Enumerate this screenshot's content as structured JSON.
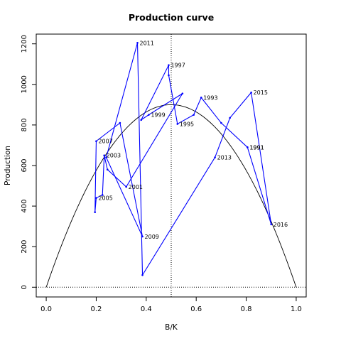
{
  "chart_data": {
    "type": "line",
    "title": "Production curve",
    "xlabel": "B/K",
    "ylabel": "Production",
    "xlim": [
      -0.04,
      1.04
    ],
    "ylim": [
      -48,
      1248
    ],
    "xticks": [
      0.0,
      0.2,
      0.4,
      0.6,
      0.8,
      1.0
    ],
    "xtick_labels": [
      "0.0",
      "0.2",
      "0.4",
      "0.6",
      "0.8",
      "1.0"
    ],
    "yticks": [
      0,
      200,
      400,
      600,
      800,
      1000,
      1200
    ],
    "ytick_labels": [
      "0",
      "200",
      "400",
      "600",
      "800",
      "1000",
      "1200"
    ],
    "grid": false,
    "legend": "none",
    "reference_lines": {
      "horizontal_dotted_y": 0,
      "vertical_dotted_x": 0.5
    },
    "curve": {
      "shape": "parabola",
      "peak_x": 0.5,
      "peak_y": 900,
      "x_from": 0.0,
      "x_to": 1.0,
      "color": "#000000"
    },
    "series": [
      {
        "color": "#0000ff",
        "points": [
          {
            "x": 0.805,
            "y": 690,
            "label": "1991"
          },
          {
            "x": 0.7,
            "y": 810,
            "label": ""
          },
          {
            "x": 0.62,
            "y": 935,
            "label": "1993"
          },
          {
            "x": 0.59,
            "y": 850,
            "label": ""
          },
          {
            "x": 0.525,
            "y": 805,
            "label": "1995"
          },
          {
            "x": 0.49,
            "y": 1045,
            "label": ""
          },
          {
            "x": 0.49,
            "y": 1095,
            "label": "1997"
          },
          {
            "x": 0.38,
            "y": 825,
            "label": ""
          },
          {
            "x": 0.41,
            "y": 850,
            "label": "1999"
          },
          {
            "x": 0.545,
            "y": 955,
            "label": ""
          },
          {
            "x": 0.32,
            "y": 495,
            "label": "2001"
          },
          {
            "x": 0.245,
            "y": 580,
            "label": ""
          },
          {
            "x": 0.232,
            "y": 650,
            "label": "2003"
          },
          {
            "x": 0.225,
            "y": 455,
            "label": ""
          },
          {
            "x": 0.2,
            "y": 440,
            "label": "2005"
          },
          {
            "x": 0.195,
            "y": 370,
            "label": ""
          },
          {
            "x": 0.2,
            "y": 720,
            "label": "2007"
          },
          {
            "x": 0.295,
            "y": 810,
            "label": ""
          },
          {
            "x": 0.385,
            "y": 250,
            "label": "2009"
          },
          {
            "x": 0.24,
            "y": 640,
            "label": ""
          },
          {
            "x": 0.365,
            "y": 1205,
            "label": "2011"
          },
          {
            "x": 0.385,
            "y": 60,
            "label": ""
          },
          {
            "x": 0.675,
            "y": 640,
            "label": "2013"
          },
          {
            "x": 0.735,
            "y": 835,
            "label": ""
          },
          {
            "x": 0.82,
            "y": 960,
            "label": "2015"
          },
          {
            "x": 0.9,
            "y": 310,
            "label": "2016"
          },
          {
            "x": 0.805,
            "y": 690,
            "label": "1991"
          }
        ]
      }
    ]
  }
}
